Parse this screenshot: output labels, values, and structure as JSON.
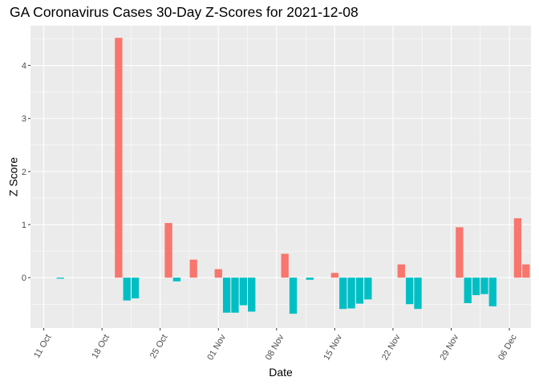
{
  "chart_data": {
    "type": "bar",
    "title": "GA Coronavirus Cases 30-Day Z-Scores for 2021-12-08",
    "xlabel": "Date",
    "ylabel": "Z Score",
    "ylim": [
      -0.95,
      4.75
    ],
    "yticks": [
      0,
      1,
      2,
      3,
      4
    ],
    "x_range_days": [
      -1.6,
      58.6
    ],
    "x_origin_date": "2021-10-11",
    "xticks": [
      {
        "day": 0,
        "label": "11 Oct"
      },
      {
        "day": 7,
        "label": "18 Oct"
      },
      {
        "day": 14,
        "label": "25 Oct"
      },
      {
        "day": 21,
        "label": "01 Nov"
      },
      {
        "day": 28,
        "label": "08 Nov"
      },
      {
        "day": 35,
        "label": "15 Nov"
      },
      {
        "day": 42,
        "label": "22 Nov"
      },
      {
        "day": 49,
        "label": "29 Nov"
      },
      {
        "day": 56,
        "label": "06 Dec"
      }
    ],
    "colors": {
      "positive": "#F8766D",
      "negative": "#00BFC4"
    },
    "series": [
      {
        "name": "z_score",
        "points": [
          {
            "day": 2,
            "value": -0.02
          },
          {
            "day": 9,
            "value": 4.52
          },
          {
            "day": 10,
            "value": -0.43
          },
          {
            "day": 11,
            "value": -0.39
          },
          {
            "day": 15,
            "value": 1.03
          },
          {
            "day": 16,
            "value": -0.07
          },
          {
            "day": 18,
            "value": 0.34
          },
          {
            "day": 21,
            "value": 0.16
          },
          {
            "day": 22,
            "value": -0.66
          },
          {
            "day": 23,
            "value": -0.66
          },
          {
            "day": 24,
            "value": -0.52
          },
          {
            "day": 25,
            "value": -0.64
          },
          {
            "day": 29,
            "value": 0.45
          },
          {
            "day": 30,
            "value": -0.68
          },
          {
            "day": 32,
            "value": -0.04
          },
          {
            "day": 35,
            "value": 0.09
          },
          {
            "day": 36,
            "value": -0.59
          },
          {
            "day": 37,
            "value": -0.58
          },
          {
            "day": 38,
            "value": -0.49
          },
          {
            "day": 39,
            "value": -0.41
          },
          {
            "day": 43,
            "value": 0.25
          },
          {
            "day": 44,
            "value": -0.5
          },
          {
            "day": 45,
            "value": -0.59
          },
          {
            "day": 50,
            "value": 0.95
          },
          {
            "day": 51,
            "value": -0.48
          },
          {
            "day": 52,
            "value": -0.33
          },
          {
            "day": 53,
            "value": -0.31
          },
          {
            "day": 54,
            "value": -0.54
          },
          {
            "day": 57,
            "value": 1.12
          },
          {
            "day": 58,
            "value": 0.25
          }
        ]
      }
    ]
  }
}
